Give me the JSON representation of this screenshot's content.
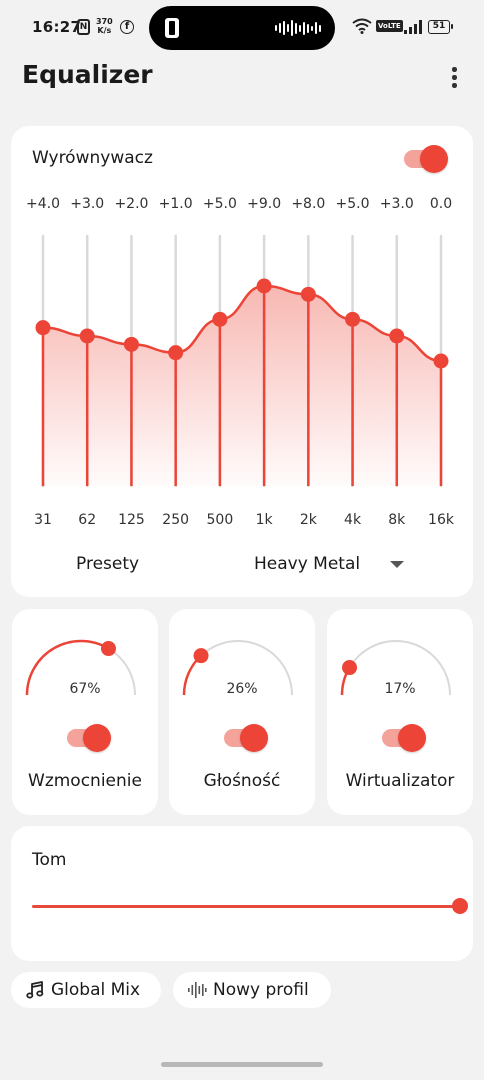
{
  "status_bar": {
    "time": "16:27",
    "nfc_label": "N",
    "net_speed_value": "370",
    "net_speed_unit": "K/s",
    "fb_label": "f",
    "volte_label": "VoLTE",
    "battery_level": "51",
    "icons": [
      "nfc-icon",
      "facebook-icon",
      "app-icon",
      "audio-wave-icon",
      "wifi-icon",
      "volte-icon",
      "signal-icon",
      "battery-icon"
    ]
  },
  "header": {
    "title": "Equalizer",
    "menu_icon": "more-vertical-icon"
  },
  "equalizer": {
    "title": "Wyrównywacz",
    "enabled": true,
    "preset_label": "Presety",
    "preset_value": "Heavy Metal",
    "bands": [
      {
        "freq": "31",
        "gain_label": "+4.0",
        "gain": 4.0
      },
      {
        "freq": "62",
        "gain_label": "+3.0",
        "gain": 3.0
      },
      {
        "freq": "125",
        "gain_label": "+2.0",
        "gain": 2.0
      },
      {
        "freq": "250",
        "gain_label": "+1.0",
        "gain": 1.0
      },
      {
        "freq": "500",
        "gain_label": "+5.0",
        "gain": 5.0
      },
      {
        "freq": "1k",
        "gain_label": "+9.0",
        "gain": 9.0
      },
      {
        "freq": "2k",
        "gain_label": "+8.0",
        "gain": 8.0
      },
      {
        "freq": "4k",
        "gain_label": "+5.0",
        "gain": 5.0
      },
      {
        "freq": "8k",
        "gain_label": "+3.0",
        "gain": 3.0
      },
      {
        "freq": "16k",
        "gain_label": "0.0",
        "gain": 0.0
      }
    ],
    "gain_range": [
      -15,
      15
    ]
  },
  "effects": [
    {
      "label": "Wzmocnienie",
      "value": 0.67,
      "value_label": "67%",
      "enabled": true
    },
    {
      "label": "Głośność",
      "value": 0.26,
      "value_label": "26%",
      "enabled": true
    },
    {
      "label": "Wirtualizator",
      "value": 0.17,
      "value_label": "17%",
      "enabled": true
    }
  ],
  "volume": {
    "title": "Tom",
    "value": 1.0
  },
  "bottom_chips": [
    {
      "label": "Global Mix",
      "icon": "music-note-icon"
    },
    {
      "label": "Nowy profil",
      "icon": "audio-wave-icon"
    }
  ],
  "colors": {
    "accent": "#ec4436",
    "accent_light": "#f4a39b",
    "track_gray": "#d9d9d9",
    "background": "#f2f2f2",
    "card": "#ffffff"
  }
}
